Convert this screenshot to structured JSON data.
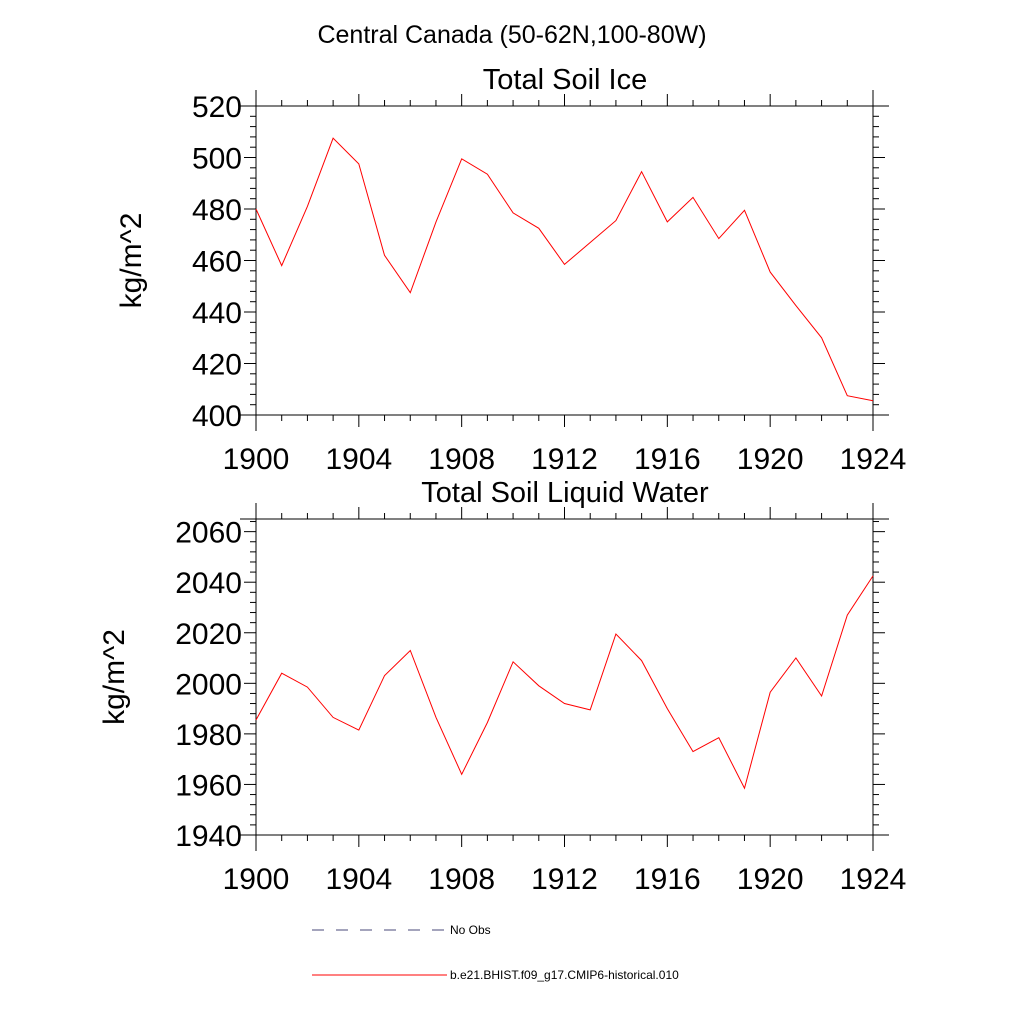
{
  "figure_title": "Central Canada (50-62N,100-80W)",
  "chart_data": [
    {
      "type": "line",
      "title": "Total Soil Ice",
      "xlabel": "",
      "ylabel": "kg/m^2",
      "xlim": [
        1900,
        1924
      ],
      "ylim": [
        400,
        520
      ],
      "xticks": [
        1900,
        1904,
        1908,
        1912,
        1916,
        1920,
        1924
      ],
      "yticks": [
        400,
        420,
        440,
        460,
        480,
        500,
        520
      ],
      "grid": false,
      "series": [
        {
          "name": "b.e21.BHIST.f09_g17.CMIP6-historical.010",
          "color": "#ff0000",
          "x": [
            1900,
            1901,
            1902,
            1903,
            1904,
            1905,
            1906,
            1907,
            1908,
            1909,
            1910,
            1911,
            1912,
            1913,
            1914,
            1915,
            1916,
            1917,
            1918,
            1919,
            1920,
            1921,
            1922,
            1923,
            1924
          ],
          "y": [
            480,
            458,
            481,
            507.5,
            497.5,
            462,
            447.5,
            475,
            499.5,
            493.5,
            478.5,
            472.5,
            458.5,
            467,
            475.5,
            494.5,
            475,
            484.5,
            468.5,
            479.5,
            455.5,
            442.5,
            430,
            407.5,
            405.5
          ]
        }
      ]
    },
    {
      "type": "line",
      "title": "Total Soil Liquid Water",
      "xlabel": "",
      "ylabel": "kg/m^2",
      "xlim": [
        1900,
        1924
      ],
      "ylim": [
        1940,
        2065
      ],
      "xticks": [
        1900,
        1904,
        1908,
        1912,
        1916,
        1920,
        1924
      ],
      "yticks": [
        1940,
        1960,
        1980,
        2000,
        2020,
        2040,
        2060
      ],
      "grid": false,
      "series": [
        {
          "name": "b.e21.BHIST.f09_g17.CMIP6-historical.010",
          "color": "#ff0000",
          "x": [
            1900,
            1901,
            1902,
            1903,
            1904,
            1905,
            1906,
            1907,
            1908,
            1909,
            1910,
            1911,
            1912,
            1913,
            1914,
            1915,
            1916,
            1917,
            1918,
            1919,
            1920,
            1921,
            1922,
            1923,
            1924
          ],
          "y": [
            1985.5,
            2004,
            1998.5,
            1986.5,
            1981.5,
            2003,
            2013,
            1986.5,
            1964,
            1984.5,
            2008.5,
            1999,
            1992,
            1989.5,
            2019.5,
            2009,
            1990,
            1973,
            1978.5,
            1958.5,
            1996.5,
            2010,
            1995,
            2027,
            2042.5
          ]
        }
      ]
    }
  ],
  "legend": {
    "placement": "bottom",
    "items": [
      {
        "label": "No Obs",
        "color": "#4a4a7a",
        "style": "dashed"
      },
      {
        "label": "b.e21.BHIST.f09_g17.CMIP6-historical.010",
        "color": "#ff0000",
        "style": "solid"
      }
    ]
  }
}
